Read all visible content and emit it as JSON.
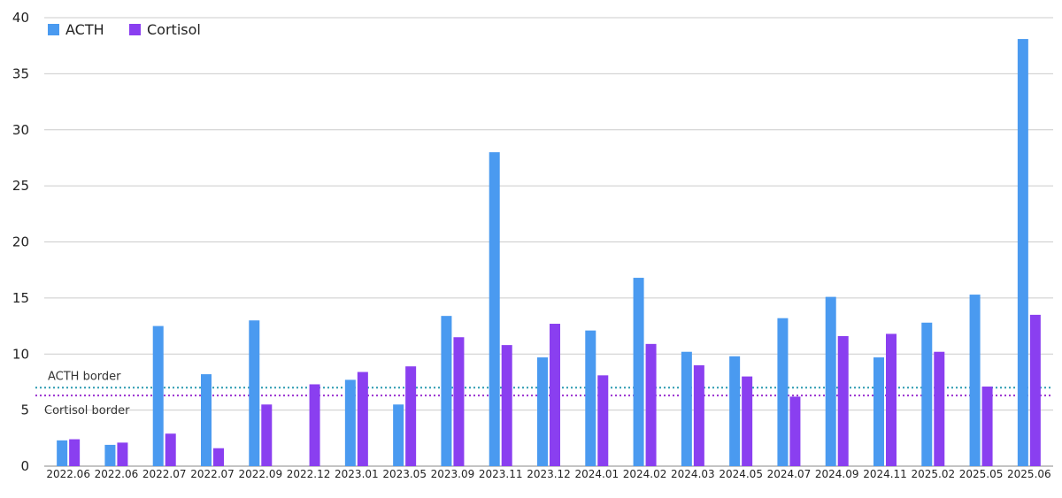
{
  "chart_data": {
    "type": "bar",
    "title": "",
    "xlabel": "",
    "ylabel": "",
    "ylim": [
      0,
      40
    ],
    "yticks": [
      0,
      5,
      10,
      15,
      20,
      25,
      30,
      35,
      40
    ],
    "grid": true,
    "legend_position": "top-left",
    "categories": [
      "2022.06",
      "2022.06",
      "2022.07",
      "2022.07",
      "2022.09",
      "2022.12",
      "2023.01",
      "2023.05",
      "2023.09",
      "2023.11",
      "2023.12",
      "2024.01",
      "2024.02",
      "2024.03",
      "2024.05",
      "2024.07",
      "2024.09",
      "2024.11",
      "2025.02",
      "2025.05",
      "2025.06"
    ],
    "series": [
      {
        "name": "ACTH",
        "color": "#4a9af0",
        "values": [
          2.3,
          1.9,
          12.5,
          8.2,
          13.0,
          null,
          7.7,
          5.5,
          13.4,
          28.0,
          9.7,
          12.1,
          16.8,
          10.2,
          9.8,
          13.2,
          15.1,
          9.7,
          12.8,
          15.3,
          38.1
        ]
      },
      {
        "name": "Cortisol",
        "color": "#8a3ff0",
        "values": [
          2.4,
          2.1,
          2.9,
          1.6,
          5.5,
          7.3,
          8.4,
          8.9,
          11.5,
          10.8,
          12.7,
          8.1,
          10.9,
          9.0,
          8.0,
          6.2,
          11.6,
          11.8,
          10.2,
          7.1,
          13.5
        ]
      }
    ],
    "reference_lines": [
      {
        "label": "ACTH border",
        "value": 7.0,
        "color": "#2a9ab0"
      },
      {
        "label": "Cortisol border",
        "value": 6.3,
        "color": "#9a30d0"
      }
    ]
  }
}
